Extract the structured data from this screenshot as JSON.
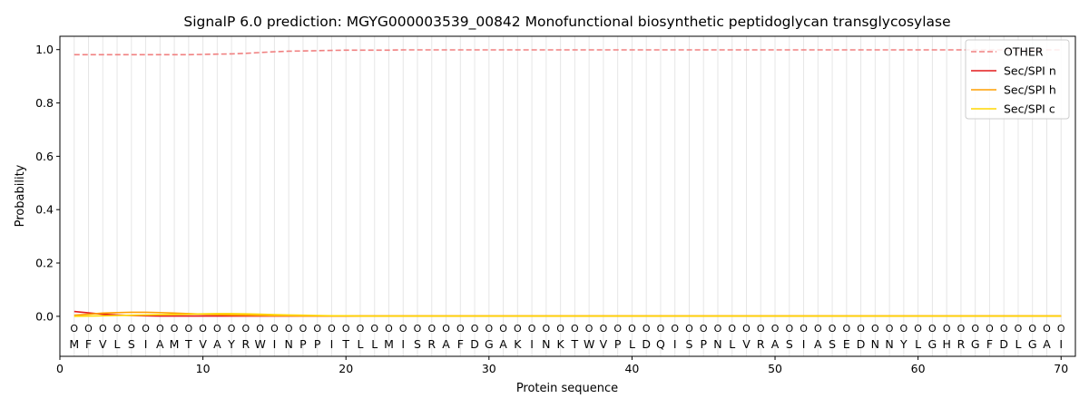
{
  "chart_data": {
    "type": "line",
    "title": "SignalP 6.0 prediction: MGYG000003539_00842 Monofunctional biosynthetic peptidoglycan transglycosylase",
    "xlabel": "Protein sequence",
    "ylabel": "Probability",
    "xlim": [
      0,
      71
    ],
    "ylim": [
      -0.15,
      1.05
    ],
    "xticks": [
      0,
      10,
      20,
      30,
      40,
      50,
      60,
      70
    ],
    "yticks": [
      0.0,
      0.2,
      0.4,
      0.6,
      0.8,
      1.0
    ],
    "grid": "vertical lines at each residue",
    "legend_position": "top-right",
    "sequence": [
      "M",
      "F",
      "V",
      "L",
      "S",
      "I",
      "A",
      "M",
      "T",
      "V",
      "A",
      "Y",
      "R",
      "W",
      "I",
      "N",
      "P",
      "P",
      "I",
      "T",
      "L",
      "L",
      "M",
      "I",
      "S",
      "R",
      "A",
      "F",
      "D",
      "G",
      "A",
      "K",
      "I",
      "N",
      "K",
      "T",
      "W",
      "V",
      "P",
      "L",
      "D",
      "Q",
      "I",
      "S",
      "P",
      "N",
      "L",
      "V",
      "R",
      "A",
      "S",
      "I",
      "A",
      "S",
      "E",
      "D",
      "N",
      "N",
      "Y",
      "L",
      "G",
      "H",
      "R",
      "G",
      "F",
      "D",
      "L",
      "G",
      "A",
      "I"
    ],
    "predicted_label": "O",
    "x": [
      1,
      2,
      3,
      4,
      5,
      6,
      7,
      8,
      9,
      10,
      11,
      12,
      13,
      14,
      15,
      16,
      17,
      18,
      19,
      20,
      21,
      22,
      23,
      24,
      25,
      26,
      27,
      28,
      29,
      30,
      31,
      32,
      33,
      34,
      35,
      36,
      37,
      38,
      39,
      40,
      41,
      42,
      43,
      44,
      45,
      46,
      47,
      48,
      49,
      50,
      51,
      52,
      53,
      54,
      55,
      56,
      57,
      58,
      59,
      60,
      61,
      62,
      63,
      64,
      65,
      66,
      67,
      68,
      69,
      70
    ],
    "series": [
      {
        "name": "OTHER",
        "color": "#f08080",
        "style": "dashed",
        "values": [
          0.981,
          0.981,
          0.981,
          0.981,
          0.981,
          0.981,
          0.981,
          0.981,
          0.981,
          0.982,
          0.983,
          0.984,
          0.986,
          0.989,
          0.992,
          0.994,
          0.995,
          0.996,
          0.997,
          0.998,
          0.998,
          0.998,
          0.998,
          0.999,
          0.999,
          0.999,
          0.999,
          0.999,
          0.999,
          0.999,
          0.999,
          0.999,
          0.999,
          0.999,
          0.999,
          0.999,
          0.999,
          0.999,
          0.999,
          0.999,
          0.999,
          0.999,
          0.999,
          0.999,
          0.999,
          0.999,
          0.999,
          0.999,
          0.999,
          0.999,
          0.999,
          0.999,
          0.999,
          0.999,
          0.999,
          0.999,
          0.999,
          0.999,
          0.999,
          0.999,
          0.999,
          0.999,
          0.999,
          0.999,
          0.999,
          0.999,
          0.999,
          0.999,
          0.999,
          0.999
        ]
      },
      {
        "name": "Sec/SPI n",
        "color": "#e31a1c",
        "style": "solid",
        "values": [
          0.018,
          0.013,
          0.008,
          0.005,
          0.003,
          0.002,
          0.001,
          0.001,
          0.001,
          0.001,
          0.001,
          0.001,
          0.001,
          0.001,
          0.001,
          0.001,
          0.001,
          0.001,
          0.001,
          0.001,
          0.001,
          0.001,
          0.001,
          0.001,
          0.001,
          0.001,
          0.001,
          0.001,
          0.001,
          0.001,
          0.001,
          0.001,
          0.001,
          0.001,
          0.001,
          0.001,
          0.001,
          0.001,
          0.001,
          0.001,
          0.001,
          0.001,
          0.001,
          0.001,
          0.001,
          0.001,
          0.001,
          0.001,
          0.001,
          0.001,
          0.001,
          0.001,
          0.001,
          0.001,
          0.001,
          0.001,
          0.001,
          0.001,
          0.001,
          0.001,
          0.001,
          0.001,
          0.001,
          0.001,
          0.001,
          0.001,
          0.001,
          0.001,
          0.001,
          0.001
        ]
      },
      {
        "name": "Sec/SPI h",
        "color": "#ff9f00",
        "style": "solid",
        "values": [
          0.004,
          0.008,
          0.012,
          0.014,
          0.015,
          0.015,
          0.014,
          0.012,
          0.01,
          0.008,
          0.006,
          0.005,
          0.004,
          0.003,
          0.002,
          0.002,
          0.001,
          0.001,
          0.001,
          0.001,
          0.001,
          0.001,
          0.001,
          0.001,
          0.001,
          0.001,
          0.001,
          0.001,
          0.001,
          0.001,
          0.001,
          0.001,
          0.001,
          0.001,
          0.001,
          0.001,
          0.001,
          0.001,
          0.001,
          0.001,
          0.001,
          0.001,
          0.001,
          0.001,
          0.001,
          0.001,
          0.001,
          0.001,
          0.001,
          0.001,
          0.001,
          0.001,
          0.001,
          0.001,
          0.001,
          0.001,
          0.001,
          0.001,
          0.001,
          0.001,
          0.001,
          0.001,
          0.001,
          0.001,
          0.001,
          0.001,
          0.001,
          0.001,
          0.001,
          0.001
        ]
      },
      {
        "name": "Sec/SPI c",
        "color": "#ffd700",
        "style": "solid",
        "values": [
          0.0,
          0.001,
          0.002,
          0.003,
          0.004,
          0.005,
          0.006,
          0.007,
          0.008,
          0.009,
          0.01,
          0.01,
          0.009,
          0.008,
          0.006,
          0.005,
          0.004,
          0.003,
          0.002,
          0.002,
          0.001,
          0.001,
          0.001,
          0.001,
          0.001,
          0.001,
          0.001,
          0.001,
          0.001,
          0.001,
          0.001,
          0.001,
          0.001,
          0.001,
          0.001,
          0.001,
          0.001,
          0.001,
          0.001,
          0.001,
          0.001,
          0.001,
          0.001,
          0.001,
          0.001,
          0.001,
          0.001,
          0.001,
          0.001,
          0.001,
          0.001,
          0.001,
          0.001,
          0.001,
          0.001,
          0.001,
          0.001,
          0.001,
          0.001,
          0.001,
          0.001,
          0.001,
          0.001,
          0.001,
          0.001,
          0.001,
          0.001,
          0.001,
          0.001,
          0.001
        ]
      }
    ]
  }
}
